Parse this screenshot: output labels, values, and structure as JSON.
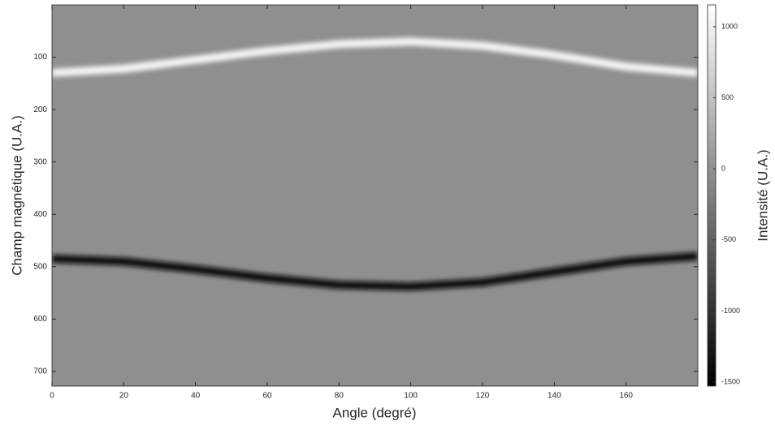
{
  "chart_data": {
    "type": "heatmap",
    "x_label": "Angle (degré)",
    "y_label": "Champ magnétique (U.A.)",
    "colorbar_label": "Intensité (U.A.)",
    "xlim": [
      0,
      180
    ],
    "xticks": [
      0,
      20,
      40,
      60,
      80,
      100,
      120,
      140,
      160
    ],
    "ylim": [
      0,
      728
    ],
    "y_reversed": true,
    "yticks": [
      100,
      200,
      300,
      400,
      500,
      600,
      700
    ],
    "clim": [
      -1528,
      1154
    ],
    "cticks": [
      -1500,
      -1000,
      -500,
      0,
      500,
      1000
    ],
    "colormap": [
      "#000000",
      "#ffffff"
    ],
    "background": "#8f8f8f",
    "x": [
      0,
      20,
      40,
      60,
      80,
      100,
      120,
      140,
      160,
      180
    ],
    "series": [
      {
        "color": "#f4f4f4",
        "values": [
          130,
          122,
          105,
          88,
          75,
          70,
          78,
          96,
          118,
          130
        ]
      },
      {
        "color": "#111111",
        "values": [
          485,
          490,
          505,
          522,
          535,
          538,
          530,
          510,
          490,
          480
        ]
      }
    ]
  }
}
